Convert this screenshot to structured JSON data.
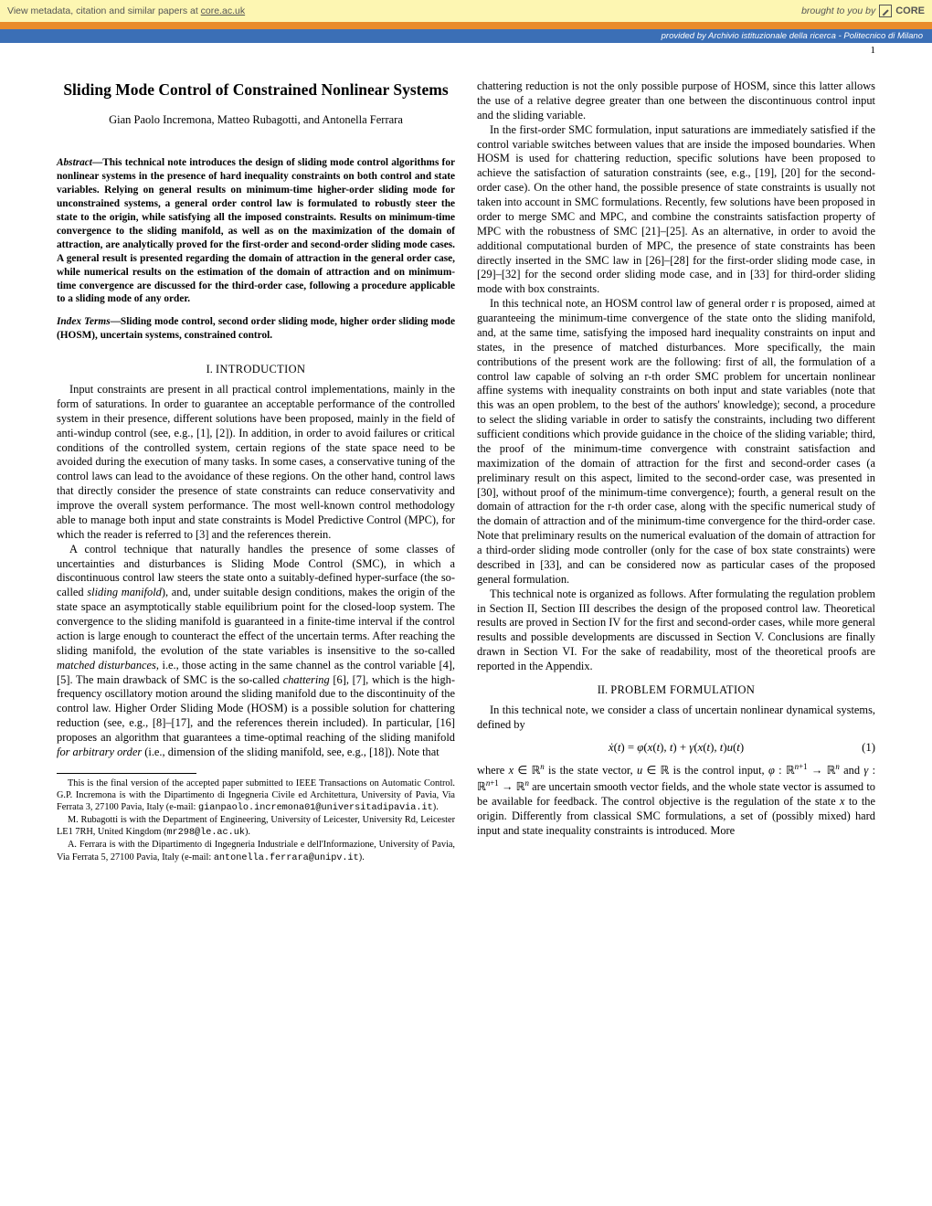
{
  "header": {
    "metadata_prefix": "View metadata, citation and similar papers at ",
    "metadata_link": "core.ac.uk",
    "brought": "brought to you by",
    "brand": "CORE",
    "provided": "provided by Archivio istituzionale della ricerca - Politecnico di Milano",
    "colors": {
      "yellow": "#fdf6b2",
      "orange": "#e98c2b",
      "blue": "#3b6fb6"
    }
  },
  "page_number": "1",
  "title": "Sliding Mode Control of Constrained Nonlinear Systems",
  "authors": "Gian Paolo Incremona, Matteo Rubagotti, and Antonella Ferrara",
  "abstract": {
    "lead": "Abstract",
    "dash": "—",
    "body": "This technical note introduces the design of sliding mode control algorithms for nonlinear systems in the presence of hard inequality constraints on both control and state variables. Relying on general results on minimum-time higher-order sliding mode for unconstrained systems, a general order control law is formulated to robustly steer the state to the origin, while satisfying all the imposed constraints. Results on minimum-time convergence to the sliding manifold, as well as on the maximization of the domain of attraction, are analytically proved for the first-order and second-order sliding mode cases. A general result is presented regarding the domain of attraction in the general order case, while numerical results on the estimation of the domain of attraction and on minimum-time convergence are discussed for the third-order case, following a procedure applicable to a sliding mode of any order."
  },
  "index_terms": {
    "lead": "Index Terms",
    "dash": "—",
    "body": "Sliding mode control, second order sliding mode, higher order sliding mode (HOSM), uncertain systems, constrained control."
  },
  "sections": {
    "intro_num": "I.",
    "intro_title": "INTRODUCTION",
    "prob_num": "II.",
    "prob_title": "PROBLEM FORMULATION"
  },
  "left_p1": "Input constraints are present in all practical control implementations, mainly in the form of saturations. In order to guarantee an acceptable performance of the controlled system in their presence, different solutions have been proposed, mainly in the field of anti-windup control (see, e.g., [1], [2]). In addition, in order to avoid failures or critical conditions of the controlled system, certain regions of the state space need to be avoided during the execution of many tasks. In some cases, a conservative tuning of the control laws can lead to the avoidance of these regions. On the other hand, control laws that directly consider the presence of state constraints can reduce conservativity and improve the overall system performance. The most well-known control methodology able to manage both input and state constraints is Model Predictive Control (MPC), for which the reader is referred to [3] and the references therein.",
  "left_p2a": "A control technique that naturally handles the presence of some classes of uncertainties and disturbances is Sliding Mode Control (SMC), in which a discontinuous control law steers the state onto a suitably-defined hyper-surface (the so-called ",
  "left_p2_it1": "sliding manifold",
  "left_p2b": "), and, under suitable design conditions, makes the origin of the state space an asymptotically stable equilibrium point for the closed-loop system. The convergence to the sliding manifold is guaranteed in a finite-time interval if the control action is large enough to counteract the effect of the uncertain terms. After reaching the sliding manifold, the evolution of the state variables is insensitive to the so-called ",
  "left_p2_it2": "matched disturbances",
  "left_p2c": ", i.e., those acting in the same channel as the control variable [4], [5]. The main drawback of SMC is the so-called ",
  "left_p2_it3": "chattering",
  "left_p2d": " [6], [7], which is the high-frequency oscillatory motion around the sliding manifold due to the discontinuity of the control law. Higher Order Sliding Mode (HOSM) is a possible solution for chattering reduction (see, e.g., [8]–[17], and the references therein included). In particular, [16] proposes an algorithm that guarantees a time-optimal reaching of the sliding manifold ",
  "left_p2_it4": "for arbitrary order",
  "left_p2e": " (i.e., dimension of the sliding manifold, see, e.g., [18]). Note that",
  "footnotes": {
    "f1a": "This is the final version of the accepted paper submitted to IEEE Transactions on Automatic Control. G.P. Incremona is with the Dipartimento di Ingegneria Civile ed Architettura, University of Pavia, Via Ferrata 3, 27100 Pavia, Italy (e-mail: ",
    "f1_email": "gianpaolo.incremona01@universitadipavia.it",
    "f1b": ").",
    "f2a": "M. Rubagotti is with the Department of Engineering, University of Leicester, University Rd, Leicester LE1 7RH, United Kingdom (",
    "f2_email": "mr298@le.ac.uk",
    "f2b": ").",
    "f3a": "A. Ferrara is with the Dipartimento di Ingegneria Industriale e dell'Informazione, University of Pavia, Via Ferrata 5, 27100 Pavia, Italy (e-mail: ",
    "f3_email": "antonella.ferrara@unipv.it",
    "f3b": ")."
  },
  "right_p0": "chattering reduction is not the only possible purpose of HOSM, since this latter allows the use of a relative degree greater than one between the discontinuous control input and the sliding variable.",
  "right_p1": "In the first-order SMC formulation, input saturations are immediately satisfied if the control variable switches between values that are inside the imposed boundaries. When HOSM is used for chattering reduction, specific solutions have been proposed to achieve the satisfaction of saturation constraints (see, e.g., [19], [20] for the second-order case). On the other hand, the possible presence of state constraints is usually not taken into account in SMC formulations. Recently, few solutions have been proposed in order to merge SMC and MPC, and combine the constraints satisfaction property of MPC with the robustness of SMC [21]–[25]. As an alternative, in order to avoid the additional computational burden of MPC, the presence of state constraints has been directly inserted in the SMC law in [26]–[28] for the first-order sliding mode case, in [29]–[32] for the second order sliding mode case, and in [33] for third-order sliding mode with box constraints.",
  "right_p2": "In this technical note, an HOSM control law of general order r is proposed, aimed at guaranteeing the minimum-time convergence of the state onto the sliding manifold, and, at the same time, satisfying the imposed hard inequality constraints on input and states, in the presence of matched disturbances. More specifically, the main contributions of the present work are the following: first of all, the formulation of a control law capable of solving an r-th order SMC problem for uncertain nonlinear affine systems with inequality constraints on both input and state variables (note that this was an open problem, to the best of the authors' knowledge); second, a procedure to select the sliding variable in order to satisfy the constraints, including two different sufficient conditions which provide guidance in the choice of the sliding variable; third, the proof of the minimum-time convergence with constraint satisfaction and maximization of the domain of attraction for the first and second-order cases (a preliminary result on this aspect, limited to the second-order case, was presented in [30], without proof of the minimum-time convergence); fourth, a general result on the domain of attraction for the r-th order case, along with the specific numerical study of the domain of attraction and of the minimum-time convergence for the third-order case. Note that preliminary results on the numerical evaluation of the domain of attraction for a third-order sliding mode controller (only for the case of box state constraints) were described in [33], and can be considered now as particular cases of the proposed general formulation.",
  "right_p3": "This technical note is organized as follows. After formulating the regulation problem in Section II, Section III describes the design of the proposed control law. Theoretical results are proved in Section IV for the first and second-order cases, while more general results and possible developments are discussed in Section V. Conclusions are finally drawn in Section VI. For the sake of readability, most of the theoretical proofs are reported in the Appendix.",
  "right_p4": "In this technical note, we consider a class of uncertain nonlinear dynamical systems, defined by",
  "equation": {
    "body": "ẋ(t) = φ(x(t), t) + γ(x(t), t)u(t)",
    "num": "(1)"
  },
  "right_p5": "where x ∈ ℝⁿ is the state vector, u ∈ ℝ is the control input, φ : ℝⁿ⁺¹ → ℝⁿ and γ : ℝⁿ⁺¹ → ℝⁿ are uncertain smooth vector fields, and the whole state vector is assumed to be available for feedback. The control objective is the regulation of the state x to the origin. Differently from classical SMC formulations, a set of (possibly mixed) hard input and state inequality constraints is introduced. More"
}
